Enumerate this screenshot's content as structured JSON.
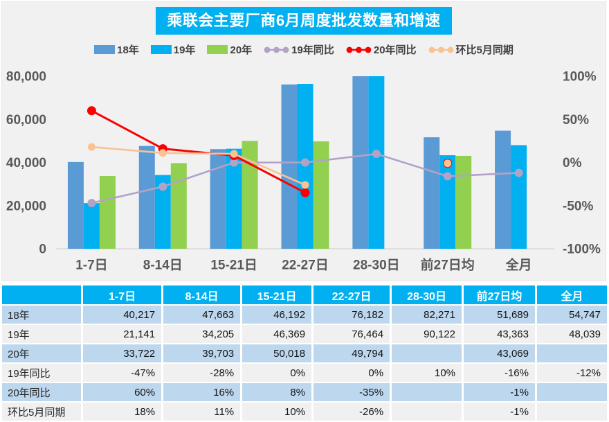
{
  "title": "乘联会主要厂商6月周度批发数量和增速",
  "colors": {
    "accent": "#00B0F0",
    "panel_bg": "#F1F1F2",
    "axis_text": "#595959",
    "axis_line": "#D9D9D9",
    "legend_text": "#404040",
    "table_row_blue": "#BDD7EE",
    "table_row_gray": "#F0F0F0",
    "bar_18": "#5B9BD5",
    "bar_19": "#00B0F0",
    "bar_20": "#92D050",
    "line_19yoy": "#B2A2C7",
    "line_20yoy": "#FB0000",
    "line_mom": "#F8C391"
  },
  "chart_data": {
    "type": "bar+line combo",
    "title": "乘联会主要厂商6月周度批发数量和增速",
    "categories": [
      "1-7日",
      "8-14日",
      "15-21日",
      "22-27日",
      "28-30日",
      "前27日均",
      "全月"
    ],
    "bar_series": [
      {
        "name": "18年",
        "color": "#5B9BD5",
        "values": [
          40217,
          47663,
          46192,
          76182,
          82271,
          51689,
          54747
        ]
      },
      {
        "name": "19年",
        "color": "#00B0F0",
        "values": [
          21141,
          34205,
          46369,
          76464,
          90122,
          43363,
          48039
        ]
      },
      {
        "name": "20年",
        "color": "#92D050",
        "values": [
          33722,
          39703,
          50018,
          49794,
          null,
          43069,
          null
        ]
      }
    ],
    "line_series": [
      {
        "name": "19年同比",
        "color": "#B2A2C7",
        "marker_r": 6,
        "stroke_w": 2.6,
        "values": [
          -47,
          -28,
          0,
          0,
          10,
          -16,
          -12
        ]
      },
      {
        "name": "20年同比",
        "color": "#FB0000",
        "marker_r": 6.5,
        "stroke_w": 3,
        "values": [
          60,
          16,
          8,
          -35,
          null,
          -1,
          null
        ]
      },
      {
        "name": "环比5月同期",
        "color": "#F8C391",
        "marker_r": 5.5,
        "stroke_w": 2.6,
        "values": [
          18,
          11,
          10,
          -26,
          null,
          -1,
          null
        ]
      }
    ],
    "left_axis": {
      "min": 0,
      "max": 80000,
      "ticks": [
        {
          "v": 0,
          "label": "0"
        },
        {
          "v": 20000,
          "label": "20,000"
        },
        {
          "v": 40000,
          "label": "40,000"
        },
        {
          "v": 60000,
          "label": "60,000"
        },
        {
          "v": 80000,
          "label": "80,000"
        }
      ]
    },
    "right_axis": {
      "min": -100,
      "max": 100,
      "ticks": [
        {
          "v": -100,
          "label": "-100%"
        },
        {
          "v": -50,
          "label": "-50%"
        },
        {
          "v": 0,
          "label": "0%"
        },
        {
          "v": 50,
          "label": "50%"
        },
        {
          "v": 100,
          "label": "100%"
        }
      ]
    },
    "legend_position": "top",
    "grid": "off"
  },
  "table": {
    "headers": [
      "",
      "1-7日",
      "8-14日",
      "15-21日",
      "22-27日",
      "28-30日",
      "前27日均",
      "全月"
    ],
    "rows": [
      {
        "label": "18年",
        "values": [
          "40,217",
          "47,663",
          "46,192",
          "76,182",
          "82,271",
          "51,689",
          "54,747"
        ]
      },
      {
        "label": "19年",
        "values": [
          "21,141",
          "34,205",
          "46,369",
          "76,464",
          "90,122",
          "43,363",
          "48,039"
        ]
      },
      {
        "label": "20年",
        "values": [
          "33,722",
          "39,703",
          "50,018",
          "49,794",
          "",
          "43,069",
          ""
        ]
      },
      {
        "label": "19年同比",
        "values": [
          "-47%",
          "-28%",
          "0%",
          "0%",
          "10%",
          "-16%",
          "-12%"
        ]
      },
      {
        "label": "20年同比",
        "values": [
          "60%",
          "16%",
          "8%",
          "-35%",
          "",
          "-1%",
          ""
        ]
      },
      {
        "label": "环比5月同期",
        "values": [
          "18%",
          "11%",
          "10%",
          "-26%",
          "",
          "-1%",
          ""
        ]
      }
    ]
  }
}
